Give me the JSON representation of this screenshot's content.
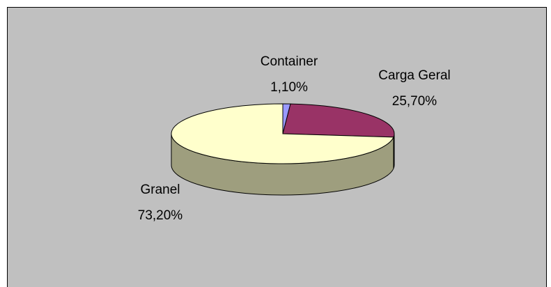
{
  "chart_data": {
    "type": "pie",
    "categories": [
      "Container",
      "Carga Geral",
      "Granel"
    ],
    "values": [
      1.1,
      25.7,
      73.2
    ],
    "value_labels": [
      "1,10%",
      "25,70%",
      "73,20%"
    ],
    "colors": [
      "#9999ff",
      "#993366",
      "#ffffcc"
    ]
  }
}
